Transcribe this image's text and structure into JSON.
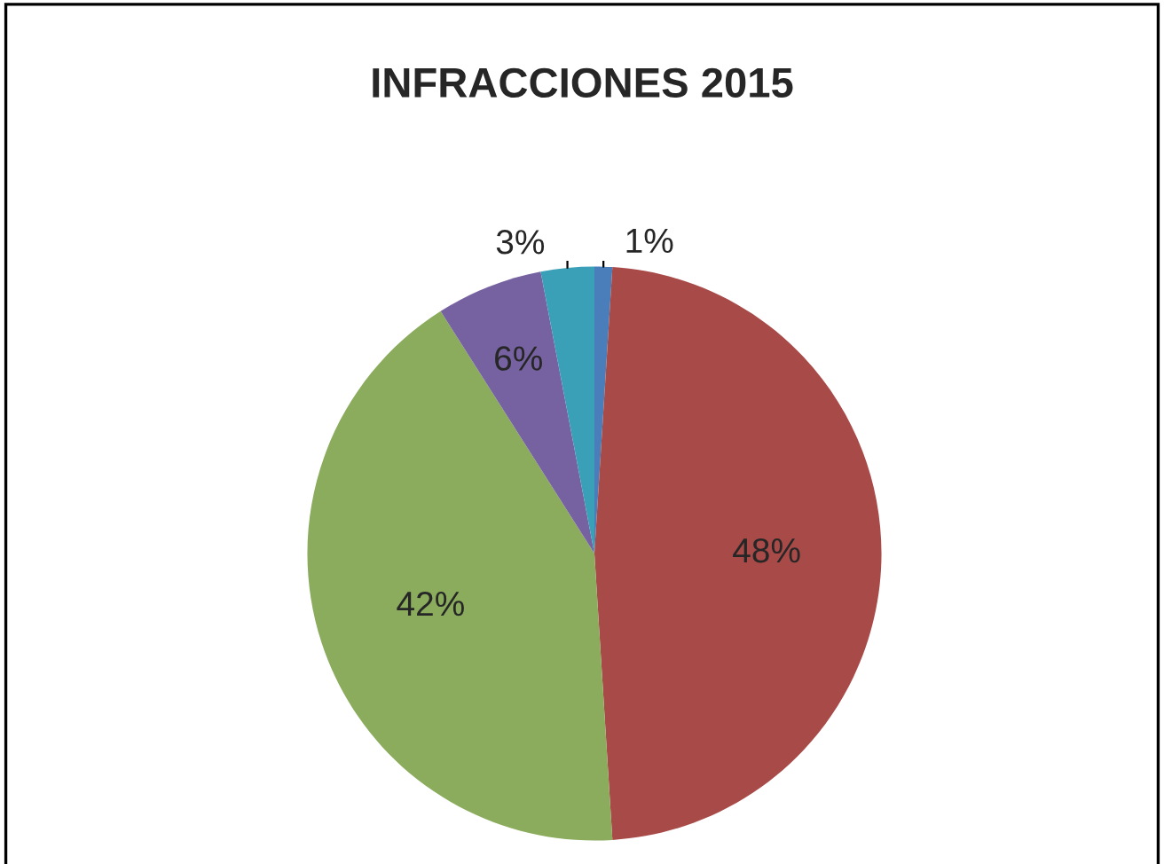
{
  "chart_data": {
    "type": "pie",
    "title": "INFRACCIONES 2015",
    "categories": [
      null,
      null,
      null,
      null,
      null
    ],
    "values": [
      1,
      48,
      42,
      6,
      3
    ],
    "colors": [
      "#4a7ebb",
      "#a84a48",
      "#8aac5c",
      "#7662a0",
      "#3aa0b8"
    ],
    "value_labels": [
      "1%",
      "48%",
      "42%",
      "6%",
      "3%"
    ]
  }
}
